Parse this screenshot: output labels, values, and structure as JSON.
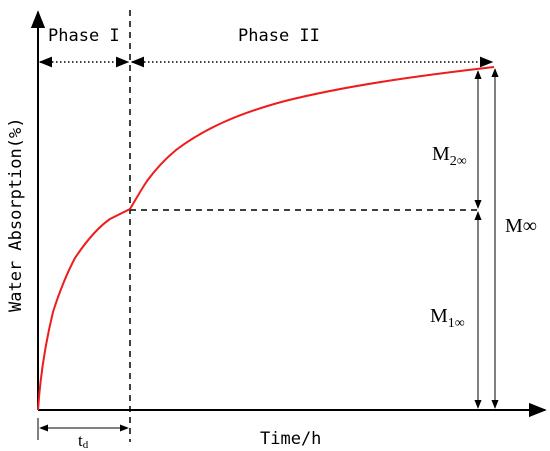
{
  "phases": {
    "phase1": "Phase I",
    "phase2": "Phase II"
  },
  "axes": {
    "y_label": "Water Absorption(%)",
    "x_label": "Time/h"
  },
  "markers": {
    "td_main": "t",
    "td_sub": "d",
    "m2_main": "M",
    "m2_sub": "2∞",
    "m1_main": "M",
    "m1_sub": "1∞",
    "minf": "M∞"
  },
  "colors": {
    "curve": "#ee1c1c",
    "lines": "#000000"
  }
}
